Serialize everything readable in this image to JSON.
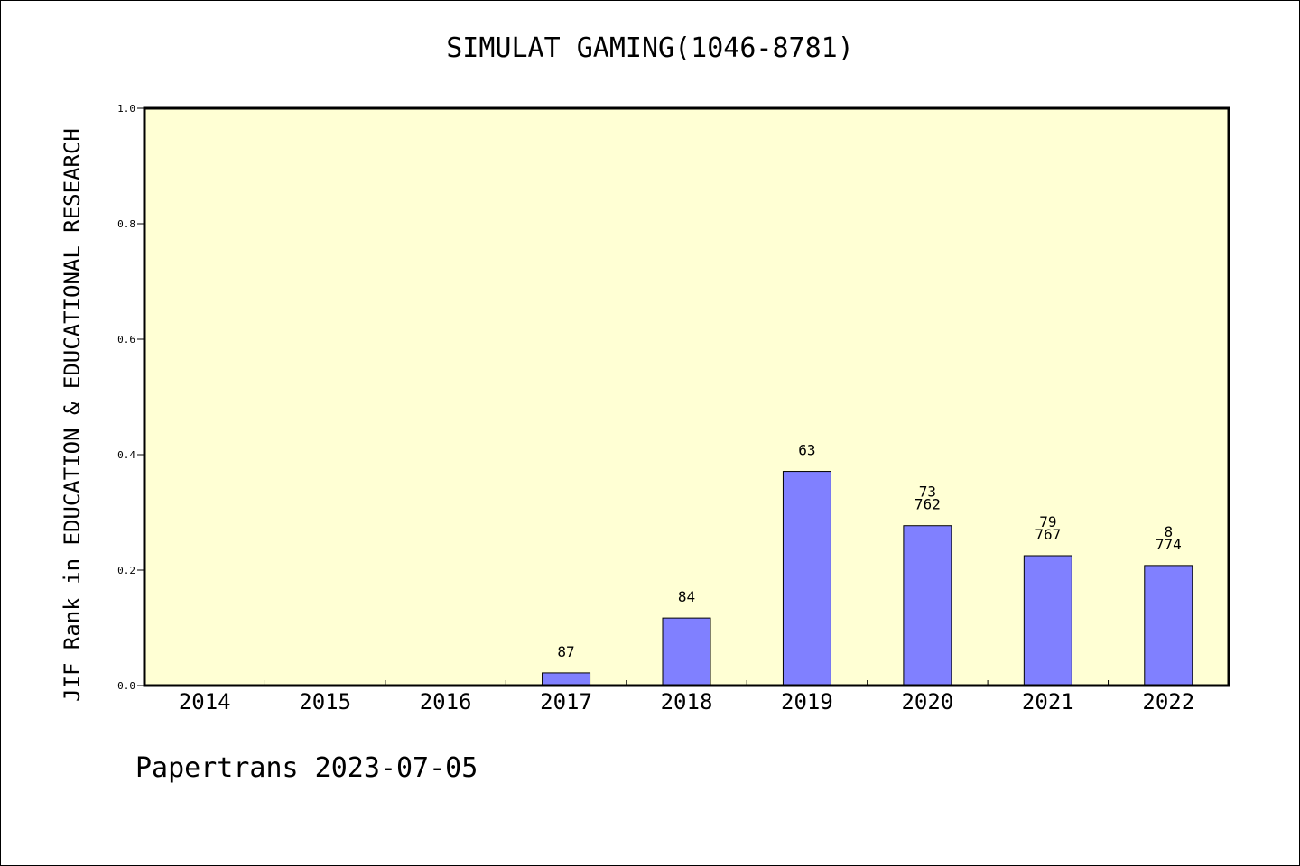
{
  "chart_data": {
    "type": "bar",
    "title": "SIMULAT GAMING(1046-8781)",
    "xlabel": "",
    "ylabel": "JIF Rank in EDUCATION & EDUCATIONAL RESEARCH",
    "ylim": [
      0.0,
      1.0
    ],
    "yticks": [
      "0.0",
      "0.2",
      "0.4",
      "0.6",
      "0.8",
      "1.0"
    ],
    "categories": [
      "2014",
      "2015",
      "2016",
      "2017",
      "2018",
      "2019",
      "2020",
      "2021",
      "2022"
    ],
    "values": [
      null,
      null,
      null,
      0.022,
      0.117,
      0.371,
      0.277,
      0.225,
      0.208
    ],
    "bar_labels": [
      [],
      [],
      [],
      [
        "87"
      ],
      [
        "84"
      ],
      [
        "63"
      ],
      [
        "73",
        "762"
      ],
      [
        "79",
        "767"
      ],
      [
        "8",
        "774"
      ]
    ],
    "grid": false,
    "legend": "none",
    "plot_background": "#ffffd4",
    "bar_color": "#8080ff"
  },
  "footer": {
    "note": "Papertrans 2023-07-05"
  }
}
